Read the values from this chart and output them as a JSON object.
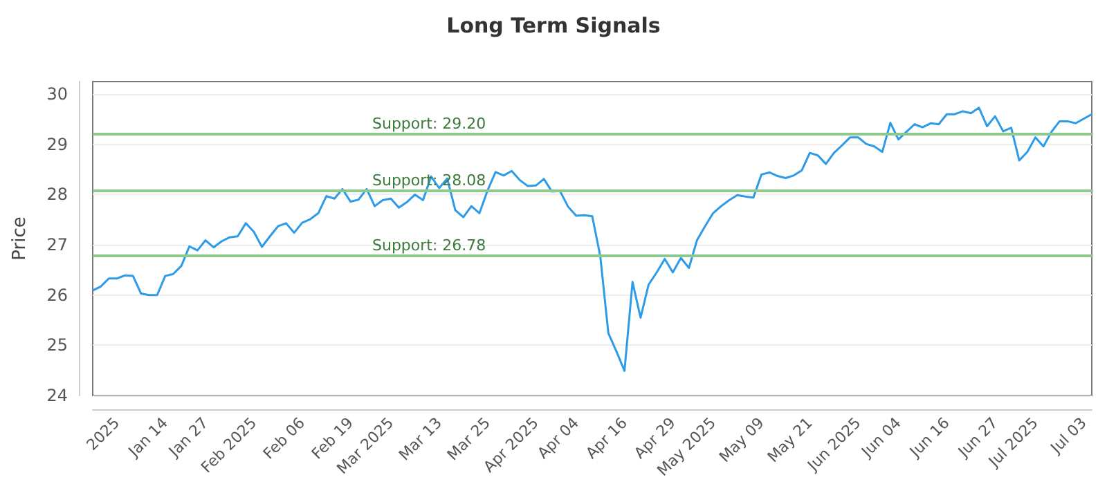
{
  "chart_data": {
    "type": "line",
    "title": "Long Term Signals",
    "ylabel": "Price",
    "categories": [
      null,
      null,
      null,
      "2025",
      null,
      null,
      null,
      null,
      null,
      "Jan 14",
      null,
      null,
      null,
      null,
      "Jan 27",
      null,
      null,
      null,
      null,
      null,
      "Feb 2025",
      null,
      null,
      null,
      null,
      null,
      "Feb 06",
      null,
      null,
      null,
      null,
      null,
      "Feb 19",
      null,
      null,
      null,
      null,
      "Mar 2025",
      null,
      null,
      null,
      null,
      null,
      "Mar 13",
      null,
      null,
      null,
      null,
      null,
      "Mar 25",
      null,
      null,
      null,
      null,
      null,
      "Apr 2025",
      null,
      null,
      null,
      null,
      "Apr 04",
      null,
      null,
      null,
      null,
      null,
      "Apr 16",
      null,
      null,
      null,
      null,
      null,
      "Apr 29",
      null,
      null,
      null,
      null,
      "May 2025",
      null,
      null,
      null,
      null,
      null,
      "May 09",
      null,
      null,
      null,
      null,
      null,
      "May 21",
      null,
      null,
      null,
      null,
      null,
      "Jun 2025",
      null,
      null,
      null,
      null,
      "Jun 04",
      null,
      null,
      null,
      null,
      null,
      "Jun 16",
      null,
      null,
      null,
      null,
      null,
      "Jun 27",
      null,
      null,
      null,
      null,
      "Jul 2025",
      null,
      null,
      null,
      null,
      null,
      "Jul 03",
      null
    ],
    "series": [
      {
        "color": "#2d9be8",
        "values": [
          26.09,
          26.17,
          26.33,
          26.33,
          26.39,
          26.38,
          26.03,
          26.0,
          26.0,
          26.38,
          26.42,
          26.58,
          26.97,
          26.89,
          27.09,
          26.95,
          27.07,
          27.15,
          27.17,
          27.43,
          27.26,
          26.96,
          27.17,
          27.37,
          27.43,
          27.24,
          27.44,
          27.51,
          27.63,
          27.97,
          27.92,
          28.11,
          27.86,
          27.9,
          28.11,
          27.77,
          27.89,
          27.92,
          27.74,
          27.85,
          28.0,
          27.89,
          28.36,
          28.13,
          28.32,
          27.69,
          27.55,
          27.77,
          27.63,
          28.08,
          28.45,
          28.38,
          28.47,
          28.29,
          28.17,
          28.18,
          28.31,
          28.06,
          28.07,
          27.76,
          27.58,
          27.59,
          27.57,
          26.77,
          25.24,
          24.88,
          24.49,
          26.26,
          25.55,
          26.21,
          26.45,
          26.72,
          26.45,
          26.74,
          26.54,
          27.09,
          27.37,
          27.63,
          27.77,
          27.89,
          27.99,
          27.96,
          27.94,
          28.4,
          28.44,
          28.37,
          28.33,
          28.38,
          28.48,
          28.83,
          28.78,
          28.61,
          28.83,
          28.98,
          29.14,
          29.14,
          29.01,
          28.96,
          28.85,
          29.43,
          29.1,
          29.25,
          29.4,
          29.34,
          29.42,
          29.4,
          29.6,
          29.6,
          29.66,
          29.62,
          29.73,
          29.36,
          29.56,
          29.26,
          29.33,
          28.68,
          28.85,
          29.14,
          28.96,
          29.25,
          29.46,
          29.46,
          29.42,
          29.51,
          29.6
        ]
      }
    ],
    "ylim": [
      24,
      30.25
    ],
    "yticks": [
      24,
      25,
      26,
      27,
      28,
      29,
      30
    ],
    "grid": "y",
    "marker": "none",
    "line_style": "solid",
    "ref_lines": [
      {
        "axis": "y",
        "value": 29.2,
        "label": "Support: 29.20",
        "color": "#8cc98c"
      },
      {
        "axis": "y",
        "value": 28.08,
        "label": "Support: 28.08",
        "color": "#8cc98c"
      },
      {
        "axis": "y",
        "value": 26.78,
        "label": "Support: 26.78",
        "color": "#8cc98c"
      }
    ]
  }
}
